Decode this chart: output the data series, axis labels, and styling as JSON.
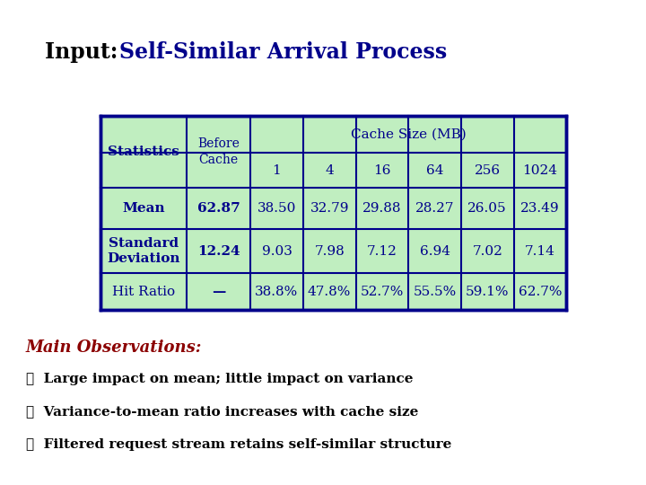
{
  "title_black": "Input: ",
  "title_blue": "Self-Similar Arrival Process",
  "bg_color": "#ffffff",
  "table_bg": "#c0eec0",
  "table_border": "#00008B",
  "cache_size_label": "Cache Size (MB)",
  "cache_sizes": [
    "1",
    "4",
    "16",
    "64",
    "256",
    "1024"
  ],
  "rows": [
    [
      "Mean",
      "62.87",
      "38.50",
      "32.79",
      "29.88",
      "28.27",
      "26.05",
      "23.49"
    ],
    [
      "Standard\nDeviation",
      "12.24",
      "9.03",
      "7.98",
      "7.12",
      "6.94",
      "7.02",
      "7.14"
    ],
    [
      "Hit Ratio",
      "—",
      "38.8%",
      "47.8%",
      "52.7%",
      "55.5%",
      "59.1%",
      "62.7%"
    ]
  ],
  "obs_title": "Main Observations:",
  "obs_color": "#8B0000",
  "obs_items": [
    "Large impact on mean; little impact on variance",
    "Variance-to-mean ratio increases with cache size",
    "Filtered request stream retains self-similar structure"
  ],
  "text_color": "#00008B"
}
